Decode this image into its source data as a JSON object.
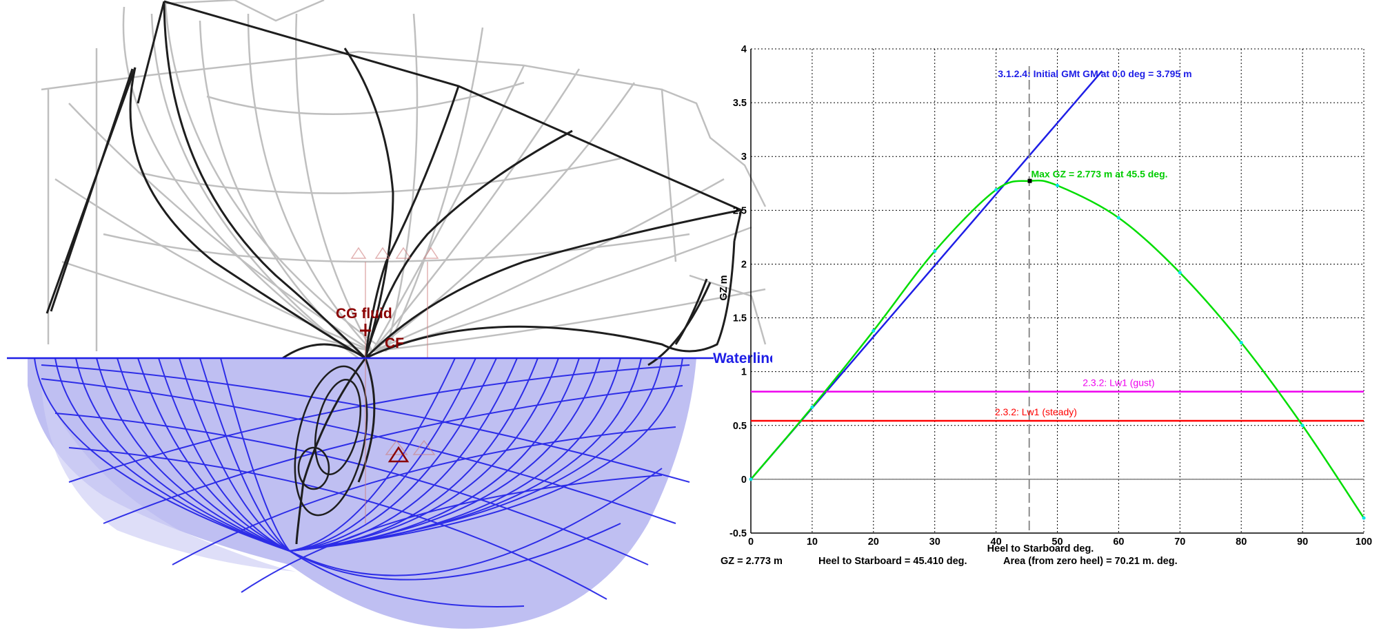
{
  "hull_view": {
    "waterline_label": "Waterline",
    "cg_label": "CG fluid",
    "cf_label": "CF",
    "colors": {
      "hull_lines": "#1e1ee6",
      "hull_fill": "#b4b4f0",
      "wireframe": "#1e1e1e",
      "ghost": "#b9b9b9",
      "markers": "#8b0000"
    }
  },
  "chart_data": {
    "type": "line",
    "xlabel": "Heel to Starboard  deg.",
    "ylabel": "GZ  m",
    "xlim": [
      0,
      100
    ],
    "ylim": [
      -0.5,
      4
    ],
    "xticks": [
      0,
      10,
      20,
      30,
      40,
      50,
      60,
      70,
      80,
      90,
      100
    ],
    "yticks": [
      -0.5,
      0,
      0.5,
      1,
      1.5,
      2,
      2.5,
      3,
      3.5,
      4
    ],
    "grid": true,
    "series": [
      {
        "color": "#00dd00",
        "x": [
          0,
          10,
          20,
          30,
          40,
          45.5,
          50,
          60,
          70,
          80,
          90,
          100
        ],
        "y": [
          0,
          0.67,
          1.38,
          2.12,
          2.69,
          2.773,
          2.73,
          2.43,
          1.92,
          1.27,
          0.5,
          -0.36
        ],
        "markers_color": "#00e5e5"
      }
    ],
    "reference_lines": [
      {
        "kind": "slope",
        "label": "3.1.2.4: Initial GMt GM at 0.0 deg = 3.795 m",
        "color": "#1e1ee6",
        "x": [
          0,
          57.3
        ],
        "y": [
          0,
          3.795
        ]
      },
      {
        "kind": "horizontal",
        "label": "2.3.2: Lw1 (gust)",
        "color": "#ee00ee",
        "y": 0.815
      },
      {
        "kind": "horizontal",
        "label": "2.3.2: Lw1 (steady)",
        "color": "#ff0000",
        "y": 0.543
      },
      {
        "kind": "vertical",
        "color": "#808080",
        "x": 45.41
      }
    ],
    "annotations": [
      {
        "text": "Max GZ = 2.773 m at 45.5 deg.",
        "x": 45.5,
        "y": 2.773,
        "color": "#00cc00"
      }
    ]
  },
  "readout": {
    "gz": "GZ =  2.773 m",
    "heel": "Heel to Starboard =  45.410  deg.",
    "area": "Area (from zero heel) =     70.21  m. deg."
  }
}
